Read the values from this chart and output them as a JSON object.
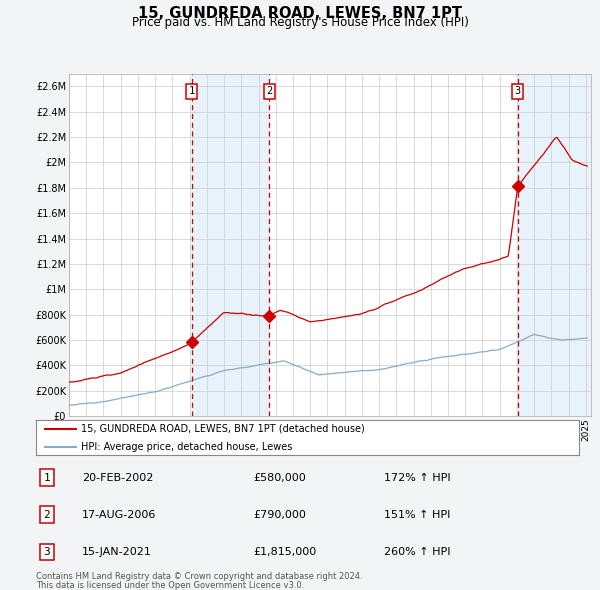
{
  "title": "15, GUNDREDA ROAD, LEWES, BN7 1PT",
  "subtitle": "Price paid vs. HM Land Registry's House Price Index (HPI)",
  "bg_color": "#f2f4f6",
  "plot_bg_color": "#ffffff",
  "grid_color": "#cccccc",
  "red_line_color": "#cc0000",
  "blue_line_color": "#88aacc",
  "ylim": [
    0,
    2700000
  ],
  "yticks": [
    0,
    200000,
    400000,
    600000,
    800000,
    1000000,
    1200000,
    1400000,
    1600000,
    1800000,
    2000000,
    2200000,
    2400000,
    2600000
  ],
  "ytick_labels": [
    "£0",
    "£200K",
    "£400K",
    "£600K",
    "£800K",
    "£1M",
    "£1.2M",
    "£1.4M",
    "£1.6M",
    "£1.8M",
    "£2M",
    "£2.2M",
    "£2.4M",
    "£2.6M"
  ],
  "xlim": [
    1995,
    2025.3
  ],
  "sale_dates": [
    2002.12,
    2006.63,
    2021.04
  ],
  "sale_prices": [
    580000,
    790000,
    1815000
  ],
  "sale_labels": [
    "1",
    "2",
    "3"
  ],
  "shade_color": "#daeaf7",
  "shade_alpha": 0.6,
  "legend_line1": "15, GUNDREDA ROAD, LEWES, BN7 1PT (detached house)",
  "legend_line2": "HPI: Average price, detached house, Lewes",
  "table_data": [
    {
      "num": "1",
      "date": "20-FEB-2002",
      "price": "£580,000",
      "hpi": "172% ↑ HPI"
    },
    {
      "num": "2",
      "date": "17-AUG-2006",
      "price": "£790,000",
      "hpi": "151% ↑ HPI"
    },
    {
      "num": "3",
      "date": "15-JAN-2021",
      "price": "£1,815,000",
      "hpi": "260% ↑ HPI"
    }
  ],
  "footer1": "Contains HM Land Registry data © Crown copyright and database right 2024.",
  "footer2": "This data is licensed under the Open Government Licence v3.0."
}
